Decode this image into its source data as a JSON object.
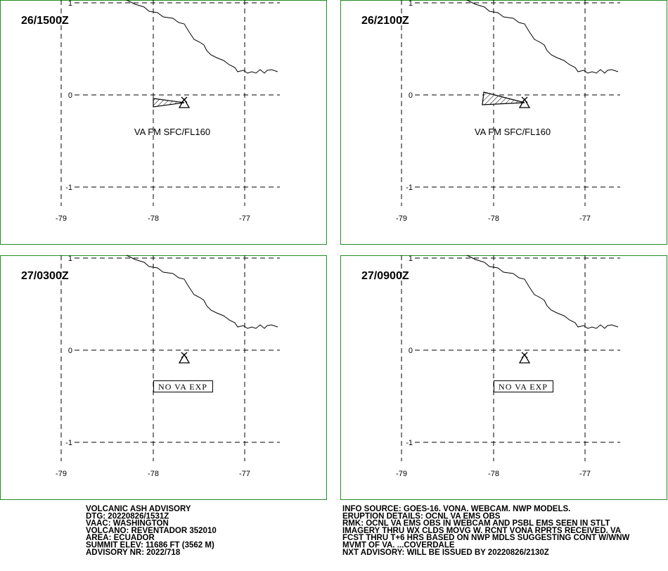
{
  "panels": [
    {
      "time": "26/1500Z",
      "annotation": "VA FM SFC/FL160",
      "va_present": true
    },
    {
      "time": "26/2100Z",
      "annotation": "VA FM SFC/FL160",
      "va_present": true
    },
    {
      "time": "27/0300Z",
      "annotation": "NO VA EXP",
      "va_present": false
    },
    {
      "time": "27/0900Z",
      "annotation": "NO VA EXP",
      "va_present": false
    }
  ],
  "lon_labels": [
    "-79",
    "-78",
    "-77"
  ],
  "lat_labels": [
    "1",
    "0",
    "-1"
  ],
  "advisory": {
    "left": [
      "VOLCANIC ASH ADVISORY",
      "DTG: 20220826/1531Z",
      "VAAC: WASHINGTON",
      "VOLCANO: REVENTADOR 352010",
      "AREA: ECUADOR",
      "SUMMIT ELEV: 11686 FT (3562 M)",
      "ADVISORY NR: 2022/718"
    ],
    "right": [
      "INFO SOURCE: GOES-16. VONA. WEBCAM. NWP MODELS.",
      "ERUPTION DETAILS: OCNL VA EMS OBS",
      "RMK: OCNL VA EMS OBS IN WEBCAM AND PSBL EMS SEEN IN STLT",
      "IMAGERY THRU WX CLDS MOVG W. RCNT VONA RPRTS RECEIVED. VA",
      "FCST THRU T+6 HRS BASED ON NWP MDLS SUGGESTING CONT W/WNW",
      "MVMT OF VA. ...COVERDALE",
      "NXT ADVISORY: WILL BE ISSUED BY 20220826/2130Z"
    ]
  }
}
